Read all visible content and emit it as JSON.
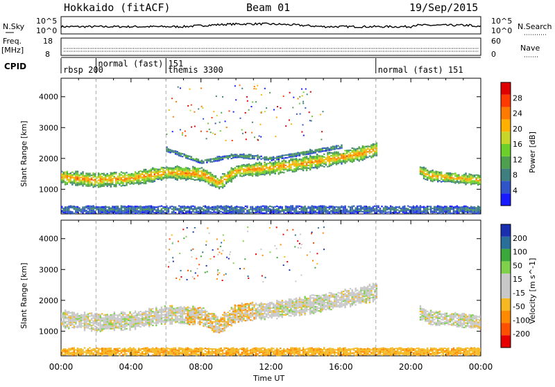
{
  "header": {
    "title": "Hokkaido (fitACF)",
    "beam": "Beam 01",
    "date": "19/Sep/2015"
  },
  "top_panels": {
    "nsky_label": "N.Sky",
    "nsky_ticks": [
      "10^5",
      "10^0"
    ],
    "nsearch_label": "N.Search",
    "nsearch_ticks": [
      "10^5",
      "10^0"
    ],
    "freq_label": "Freq.",
    "freq_unit": "[MHz]",
    "freq_ticks": [
      "18",
      "8"
    ],
    "nave_label": "Nave",
    "nave_ticks": [
      "60",
      "0"
    ],
    "cpid_label": "CPID"
  },
  "cpid_modes": [
    {
      "label": "rbsp 200",
      "start_hour": 0.0
    },
    {
      "label": "normal (fast) 151",
      "start_hour": 2.0
    },
    {
      "label": "themis 3300",
      "start_hour": 6.0
    },
    {
      "label": "normal (fast) 151",
      "start_hour": 18.0
    }
  ],
  "colors": {
    "power": [
      "#1a1aff",
      "#2f55c9",
      "#3f7f7f",
      "#4ea04e",
      "#6ccf2a",
      "#c8d62a",
      "#ffb000",
      "#ff7a00",
      "#ff3a00",
      "#e00000"
    ],
    "velocity": [
      "#e60000",
      "#ff5000",
      "#ff8a00",
      "#f5b820",
      "#c8c8c8",
      "#c8c8c8",
      "#7fd04a",
      "#3aa83a",
      "#2a6f9a",
      "#1a2fb0"
    ]
  },
  "chart_data": [
    {
      "type": "heatmap",
      "title": "",
      "xlabel": "",
      "ylabel": "Slant Range [km]",
      "xlim": [
        0,
        24
      ],
      "ylim": [
        200,
        4600
      ],
      "x_ticks": [
        "00:00",
        "04:00",
        "08:00",
        "12:00",
        "16:00",
        "20:00",
        "00:00"
      ],
      "y_ticks": [
        1000,
        2000,
        3000,
        4000
      ],
      "colorbar": {
        "label": "Power [dB]",
        "ticks": [
          4,
          8,
          12,
          16,
          20,
          24,
          28
        ],
        "range": [
          0,
          30
        ]
      },
      "bands": [
        {
          "name": "main echo",
          "points": [
            [
              0,
              1400
            ],
            [
              2,
              1300
            ],
            [
              4,
              1350
            ],
            [
              6,
              1550
            ],
            [
              8,
              1500
            ],
            [
              9,
              1200
            ],
            [
              10,
              1600
            ],
            [
              12,
              1700
            ],
            [
              14,
              1850
            ],
            [
              16,
              2050
            ],
            [
              17,
              2150
            ],
            [
              18,
              2300
            ]
          ],
          "halfwidth": 200,
          "power": 22
        },
        {
          "name": "upper band",
          "points": [
            [
              6,
              2300
            ],
            [
              8,
              1900
            ],
            [
              10,
              2100
            ],
            [
              12,
              2000
            ],
            [
              14,
              2200
            ],
            [
              16,
              2400
            ]
          ],
          "halfwidth": 60,
          "power": 11
        },
        {
          "name": "late echo",
          "points": [
            [
              20.5,
              1600
            ],
            [
              21,
              1450
            ],
            [
              22,
              1400
            ],
            [
              23,
              1350
            ],
            [
              24,
              1300
            ]
          ],
          "halfwidth": 160,
          "power": 21
        },
        {
          "name": "ground clutter",
          "points": [
            [
              0,
              350
            ],
            [
              6,
              350
            ],
            [
              12,
              350
            ],
            [
              18,
              350
            ],
            [
              24,
              350
            ]
          ],
          "halfwidth": 110,
          "power": 8
        }
      ],
      "x_label_text": "Time UT"
    },
    {
      "type": "heatmap",
      "title": "",
      "xlabel": "Time UT",
      "ylabel": "Slant Range [km]",
      "xlim": [
        0,
        24
      ],
      "ylim": [
        200,
        4600
      ],
      "x_ticks": [
        "00:00",
        "04:00",
        "08:00",
        "12:00",
        "16:00",
        "20:00",
        "00:00"
      ],
      "y_ticks": [
        1000,
        2000,
        3000,
        4000
      ],
      "colorbar": {
        "label": "Velocity [m s^-1]",
        "ticks": [
          200,
          100,
          50,
          15,
          -15,
          -50,
          -100,
          -200
        ]
      },
      "bands": [
        {
          "name": "main echo",
          "points": [
            [
              0,
              1400
            ],
            [
              2,
              1300
            ],
            [
              4,
              1350
            ],
            [
              6,
              1550
            ],
            [
              8,
              1500
            ],
            [
              9,
              1200
            ],
            [
              10,
              1600
            ],
            [
              12,
              1700
            ],
            [
              14,
              1850
            ],
            [
              16,
              2050
            ],
            [
              17,
              2150
            ],
            [
              18,
              2300
            ]
          ],
          "halfwidth": 260,
          "velocity": 0
        },
        {
          "name": "late echo",
          "points": [
            [
              20.5,
              1600
            ],
            [
              21,
              1450
            ],
            [
              22,
              1400
            ],
            [
              23,
              1350
            ],
            [
              24,
              1300
            ]
          ],
          "halfwidth": 200,
          "velocity": 0
        },
        {
          "name": "ground clutter",
          "points": [
            [
              0,
              350
            ],
            [
              6,
              350
            ],
            [
              12,
              350
            ],
            [
              18,
              350
            ],
            [
              24,
              350
            ]
          ],
          "halfwidth": 110,
          "velocity": -40
        }
      ]
    }
  ]
}
